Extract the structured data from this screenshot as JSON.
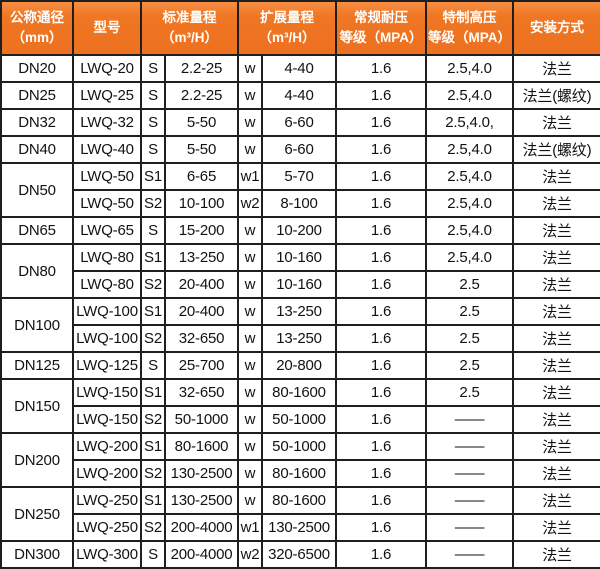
{
  "table": {
    "colors": {
      "header_bg": "#ee7420",
      "header_bg_highlight": "#f78e44",
      "header_text": "#ffffff",
      "border": "#1f1f1f",
      "body_text": "#121212"
    },
    "header": {
      "col_dn": {
        "line1": "公称通径",
        "line2": "（mm）"
      },
      "col_model": "型号",
      "col_std": {
        "line1": "标准量程",
        "line2": "（m³/H）"
      },
      "col_ext": {
        "line1": "扩展量程",
        "line2": "（m³/H）"
      },
      "col_regular": {
        "line1": "常规耐压",
        "line2": "等级（MPA）"
      },
      "col_high": {
        "line1": "特制高压",
        "line2": "等级（MPA）"
      },
      "col_install": "安装方式"
    },
    "rows": [
      {
        "dn": "DN20",
        "model": "LWQ-20",
        "std_code": "S",
        "std_range": "2.2-25",
        "ext_code": "w",
        "ext_range": "4-40",
        "regular_mpa": "1.6",
        "high_mpa": "2.5,4.0",
        "install": "法兰"
      },
      {
        "dn": "DN25",
        "model": "LWQ-25",
        "std_code": "S",
        "std_range": "2.2-25",
        "ext_code": "w",
        "ext_range": "4-40",
        "regular_mpa": "1.6",
        "high_mpa": "2.5,4.0",
        "install": "法兰(螺纹)"
      },
      {
        "dn": "DN32",
        "model": "LWQ-32",
        "std_code": "S",
        "std_range": "5-50",
        "ext_code": "w",
        "ext_range": "6-60",
        "regular_mpa": "1.6",
        "high_mpa": "2.5,4.0,",
        "install": "法兰"
      },
      {
        "dn": "DN40",
        "model": "LWQ-40",
        "std_code": "S",
        "std_range": "5-50",
        "ext_code": "w",
        "ext_range": "6-60",
        "regular_mpa": "1.6",
        "high_mpa": "2.5,4.0",
        "install": "法兰(螺纹)"
      },
      {
        "dn": "DN50",
        "model": "LWQ-50",
        "std_code": "S1",
        "std_range": "6-65",
        "ext_code": "w1",
        "ext_range": "5-70",
        "regular_mpa": "1.6",
        "high_mpa": "2.5,4.0",
        "install": "法兰"
      },
      {
        "dn": null,
        "model": "LWQ-50",
        "std_code": "S2",
        "std_range": "10-100",
        "ext_code": "w2",
        "ext_range": "8-100",
        "regular_mpa": "1.6",
        "high_mpa": "2.5,4.0",
        "install": "法兰"
      },
      {
        "dn": "DN65",
        "model": "LWQ-65",
        "std_code": "S",
        "std_range": "15-200",
        "ext_code": "w",
        "ext_range": "10-200",
        "regular_mpa": "1.6",
        "high_mpa": "2.5,4.0",
        "install": "法兰"
      },
      {
        "dn": "DN80",
        "model": "LWQ-80",
        "std_code": "S1",
        "std_range": "13-250",
        "ext_code": "w",
        "ext_range": "10-160",
        "regular_mpa": "1.6",
        "high_mpa": "2.5,4.0",
        "install": "法兰"
      },
      {
        "dn": null,
        "model": "LWQ-80",
        "std_code": "S2",
        "std_range": "20-400",
        "ext_code": "w",
        "ext_range": "10-160",
        "regular_mpa": "1.6",
        "high_mpa": "2.5",
        "install": "法兰"
      },
      {
        "dn": "DN100",
        "model": "LWQ-100",
        "std_code": "S1",
        "std_range": "20-400",
        "ext_code": "w",
        "ext_range": "13-250",
        "regular_mpa": "1.6",
        "high_mpa": "2.5",
        "install": "法兰"
      },
      {
        "dn": null,
        "model": "LWQ-100",
        "std_code": "S2",
        "std_range": "32-650",
        "ext_code": "w",
        "ext_range": "13-250",
        "regular_mpa": "1.6",
        "high_mpa": "2.5",
        "install": "法兰"
      },
      {
        "dn": "DN125",
        "model": "LWQ-125",
        "std_code": "S",
        "std_range": "25-700",
        "ext_code": "w",
        "ext_range": "20-800",
        "regular_mpa": "1.6",
        "high_mpa": "2.5",
        "install": "法兰"
      },
      {
        "dn": "DN150",
        "model": "LWQ-150",
        "std_code": "S1",
        "std_range": "32-650",
        "ext_code": "w",
        "ext_range": "80-1600",
        "regular_mpa": "1.6",
        "high_mpa": "2.5",
        "install": "法兰"
      },
      {
        "dn": null,
        "model": "LWQ-150",
        "std_code": "S2",
        "std_range": "50-1000",
        "ext_code": "w",
        "ext_range": "50-1000",
        "regular_mpa": "1.6",
        "high_mpa": "——",
        "install": "法兰"
      },
      {
        "dn": "DN200",
        "model": "LWQ-200",
        "std_code": "S1",
        "std_range": "80-1600",
        "ext_code": "w",
        "ext_range": "50-1000",
        "regular_mpa": "1.6",
        "high_mpa": "——",
        "install": "法兰"
      },
      {
        "dn": null,
        "model": "LWQ-200",
        "std_code": "S2",
        "std_range": "130-2500",
        "ext_code": "w",
        "ext_range": "80-1600",
        "regular_mpa": "1.6",
        "high_mpa": "——",
        "install": "法兰"
      },
      {
        "dn": "DN250",
        "model": "LWQ-250",
        "std_code": "S1",
        "std_range": "130-2500",
        "ext_code": "w",
        "ext_range": "80-1600",
        "regular_mpa": "1.6",
        "high_mpa": "——",
        "install": "法兰"
      },
      {
        "dn": null,
        "model": "LWQ-250",
        "std_code": "S2",
        "std_range": "200-4000",
        "ext_code": "w1",
        "ext_range": "130-2500",
        "regular_mpa": "1.6",
        "high_mpa": "——",
        "install": "法兰"
      },
      {
        "dn": "DN300",
        "model": "LWQ-300",
        "std_code": "S",
        "std_range": "200-4000",
        "ext_code": "w2",
        "ext_range": "320-6500",
        "regular_mpa": "1.6",
        "high_mpa": "——",
        "install": "法兰"
      }
    ]
  }
}
